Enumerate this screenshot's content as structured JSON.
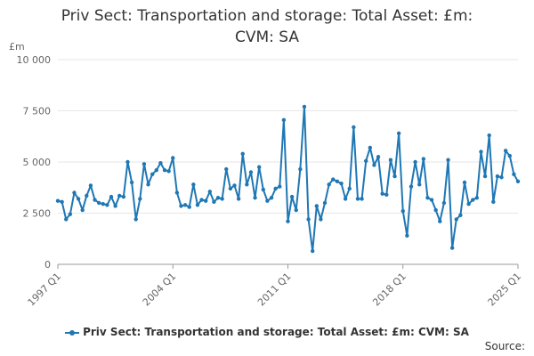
{
  "chart_data": {
    "type": "line",
    "title_lines": [
      "Priv Sect: Transportation and storage: Total Asset: £m:",
      "CVM: SA"
    ],
    "ylabel": "£m",
    "ylim": [
      0,
      10000
    ],
    "yticks": [
      {
        "value": 0,
        "label": "0"
      },
      {
        "value": 2500,
        "label": "2 500"
      },
      {
        "value": 5000,
        "label": "5 000"
      },
      {
        "value": 7500,
        "label": "7 500"
      },
      {
        "value": 10000,
        "label": "10 000"
      }
    ],
    "xlim": [
      "1997 Q1",
      "2025 Q1"
    ],
    "xticks": [
      "1997 Q1",
      "2004 Q1",
      "2011 Q1",
      "2018 Q1",
      "2025 Q1"
    ],
    "grid": true,
    "legend_position": "bottom",
    "series": [
      {
        "name": "Priv Sect: Transportation and storage: Total Asset: £m: CVM: SA",
        "color": "#1f77b4",
        "start": "1997 Q1",
        "values": [
          3100,
          3050,
          2200,
          2450,
          3500,
          3200,
          2650,
          3350,
          3850,
          3150,
          3000,
          2950,
          2900,
          3300,
          2850,
          3350,
          3300,
          5000,
          4000,
          2200,
          3200,
          4900,
          3900,
          4400,
          4600,
          4950,
          4600,
          4550,
          5200,
          3500,
          2850,
          2900,
          2800,
          3900,
          2900,
          3150,
          3100,
          3550,
          3050,
          3250,
          3200,
          4650,
          3700,
          3850,
          3200,
          5400,
          3900,
          4500,
          3250,
          4750,
          3650,
          3100,
          3250,
          3700,
          3800,
          7050,
          2100,
          3300,
          2650,
          4650,
          7700,
          2200,
          650,
          2850,
          2200,
          3000,
          3900,
          4150,
          4050,
          3950,
          3200,
          3700,
          6700,
          3200,
          3200,
          5050,
          5700,
          4850,
          5250,
          3450,
          3400,
          5100,
          4300,
          6400,
          2600,
          1400,
          3800,
          5000,
          3900,
          5150,
          3250,
          3150,
          2650,
          2100,
          3000,
          5100,
          800,
          2200,
          2400,
          4000,
          2950,
          3150,
          3250,
          5500,
          4300,
          6300,
          3050,
          4300,
          4250,
          5550,
          5300,
          4400,
          4050
        ]
      }
    ]
  },
  "source_label": "Source:"
}
